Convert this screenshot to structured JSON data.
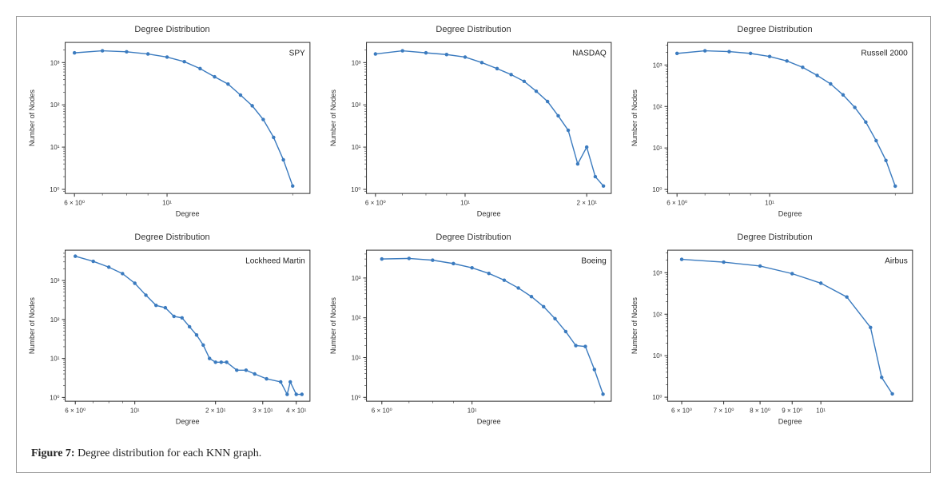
{
  "figure_caption_label": "Figure 7:",
  "figure_caption_text": " Degree distribution for each KNN graph.",
  "grid": {
    "rows": 2,
    "cols": 3
  },
  "chart_style": {
    "line_color": "#3b7bbf",
    "marker_color": "#3b7bbf",
    "marker_radius": 2.2,
    "line_width": 1.4,
    "border_color": "#333333",
    "tick_color": "#333333",
    "text_color": "#333333",
    "background": "#ffffff",
    "title_fontsize": 11,
    "label_fontsize": 9,
    "tick_fontsize": 8,
    "legend_fontsize": 10
  },
  "charts": [
    {
      "title": "Degree Distribution",
      "series_label": "SPY",
      "xlabel": "Degree",
      "ylabel": "Number of Nodes",
      "xscale": "log",
      "yscale": "log",
      "xlim": [
        5.7,
        22
      ],
      "ylim": [
        0.8,
        3000
      ],
      "xticks": [
        {
          "v": 6,
          "l": "6 × 10⁰"
        },
        {
          "v": 10,
          "l": "10¹"
        }
      ],
      "yticks": [
        {
          "v": 1,
          "l": "10⁰"
        },
        {
          "v": 10,
          "l": "10¹"
        },
        {
          "v": 100,
          "l": "10²"
        },
        {
          "v": 1000,
          "l": "10³"
        }
      ],
      "data": [
        {
          "x": 6,
          "y": 1700
        },
        {
          "x": 7,
          "y": 1900
        },
        {
          "x": 8,
          "y": 1800
        },
        {
          "x": 9,
          "y": 1600
        },
        {
          "x": 10,
          "y": 1350
        },
        {
          "x": 11,
          "y": 1050
        },
        {
          "x": 12,
          "y": 720
        },
        {
          "x": 13,
          "y": 460
        },
        {
          "x": 14,
          "y": 310
        },
        {
          "x": 15,
          "y": 170
        },
        {
          "x": 16,
          "y": 95
        },
        {
          "x": 17,
          "y": 45
        },
        {
          "x": 18,
          "y": 17
        },
        {
          "x": 19,
          "y": 5
        },
        {
          "x": 20,
          "y": 1.2
        }
      ]
    },
    {
      "title": "Degree Distribution",
      "series_label": "NASDAQ",
      "xlabel": "Degree",
      "ylabel": "Number of Nodes",
      "xscale": "log",
      "yscale": "log",
      "xlim": [
        5.7,
        23
      ],
      "ylim": [
        0.8,
        3000
      ],
      "xticks": [
        {
          "v": 6,
          "l": "6 × 10⁰"
        },
        {
          "v": 10,
          "l": "10¹"
        },
        {
          "v": 20,
          "l": "2 × 10¹"
        }
      ],
      "yticks": [
        {
          "v": 1,
          "l": "10⁰"
        },
        {
          "v": 10,
          "l": "10¹"
        },
        {
          "v": 100,
          "l": "10²"
        },
        {
          "v": 1000,
          "l": "10³"
        }
      ],
      "data": [
        {
          "x": 6,
          "y": 1600
        },
        {
          "x": 7,
          "y": 1900
        },
        {
          "x": 8,
          "y": 1700
        },
        {
          "x": 9,
          "y": 1550
        },
        {
          "x": 10,
          "y": 1350
        },
        {
          "x": 11,
          "y": 1000
        },
        {
          "x": 12,
          "y": 720
        },
        {
          "x": 13,
          "y": 520
        },
        {
          "x": 14,
          "y": 360
        },
        {
          "x": 15,
          "y": 210
        },
        {
          "x": 16,
          "y": 120
        },
        {
          "x": 17,
          "y": 55
        },
        {
          "x": 18,
          "y": 25
        },
        {
          "x": 19,
          "y": 4
        },
        {
          "x": 20,
          "y": 10
        },
        {
          "x": 21,
          "y": 2
        },
        {
          "x": 22,
          "y": 1.2
        }
      ]
    },
    {
      "title": "Degree Distribution",
      "series_label": "Russell 2000",
      "xlabel": "Degree",
      "ylabel": "Number of Nodes",
      "xscale": "log",
      "yscale": "log",
      "xlim": [
        5.7,
        22
      ],
      "ylim": [
        0.8,
        3500
      ],
      "xticks": [
        {
          "v": 6,
          "l": "6 × 10⁰"
        },
        {
          "v": 10,
          "l": "10¹"
        }
      ],
      "yticks": [
        {
          "v": 1,
          "l": "10⁰"
        },
        {
          "v": 10,
          "l": "10¹"
        },
        {
          "v": 100,
          "l": "10²"
        },
        {
          "v": 1000,
          "l": "10³"
        }
      ],
      "data": [
        {
          "x": 6,
          "y": 1900
        },
        {
          "x": 7,
          "y": 2200
        },
        {
          "x": 8,
          "y": 2100
        },
        {
          "x": 9,
          "y": 1900
        },
        {
          "x": 10,
          "y": 1600
        },
        {
          "x": 11,
          "y": 1250
        },
        {
          "x": 12,
          "y": 880
        },
        {
          "x": 13,
          "y": 560
        },
        {
          "x": 14,
          "y": 350
        },
        {
          "x": 15,
          "y": 190
        },
        {
          "x": 16,
          "y": 95
        },
        {
          "x": 17,
          "y": 42
        },
        {
          "x": 18,
          "y": 15
        },
        {
          "x": 19,
          "y": 5
        },
        {
          "x": 20,
          "y": 1.2
        }
      ]
    },
    {
      "title": "Degree Distribution",
      "series_label": "Lockheed Martin",
      "xlabel": "Degree",
      "ylabel": "Number of Nodes",
      "xscale": "log",
      "yscale": "log",
      "xlim": [
        5.5,
        45
      ],
      "ylim": [
        0.8,
        6000
      ],
      "xticks": [
        {
          "v": 6,
          "l": "6 × 10⁰"
        },
        {
          "v": 10,
          "l": "10¹"
        },
        {
          "v": 20,
          "l": "2 × 10¹"
        },
        {
          "v": 30,
          "l": "3 × 10¹"
        },
        {
          "v": 40,
          "l": "4 × 10¹"
        }
      ],
      "yticks": [
        {
          "v": 1,
          "l": "10⁰"
        },
        {
          "v": 10,
          "l": "10¹"
        },
        {
          "v": 100,
          "l": "10²"
        },
        {
          "v": 1000,
          "l": "10³"
        }
      ],
      "data": [
        {
          "x": 6,
          "y": 4200
        },
        {
          "x": 7,
          "y": 3100
        },
        {
          "x": 8,
          "y": 2200
        },
        {
          "x": 9,
          "y": 1500
        },
        {
          "x": 10,
          "y": 850
        },
        {
          "x": 11,
          "y": 420
        },
        {
          "x": 12,
          "y": 230
        },
        {
          "x": 13,
          "y": 200
        },
        {
          "x": 14,
          "y": 120
        },
        {
          "x": 15,
          "y": 110
        },
        {
          "x": 16,
          "y": 65
        },
        {
          "x": 17,
          "y": 40
        },
        {
          "x": 18,
          "y": 22
        },
        {
          "x": 19,
          "y": 10
        },
        {
          "x": 20,
          "y": 8
        },
        {
          "x": 21,
          "y": 8
        },
        {
          "x": 22,
          "y": 8
        },
        {
          "x": 24,
          "y": 5
        },
        {
          "x": 26,
          "y": 5
        },
        {
          "x": 28,
          "y": 4
        },
        {
          "x": 31,
          "y": 3
        },
        {
          "x": 35,
          "y": 2.5
        },
        {
          "x": 37,
          "y": 1.2
        },
        {
          "x": 38,
          "y": 2.5
        },
        {
          "x": 40,
          "y": 1.2
        },
        {
          "x": 42,
          "y": 1.2
        }
      ]
    },
    {
      "title": "Degree Distribution",
      "series_label": "Boeing",
      "xlabel": "Degree",
      "ylabel": "Number of Nodes",
      "xscale": "log",
      "yscale": "log",
      "xlim": [
        5.5,
        22
      ],
      "ylim": [
        0.8,
        5000
      ],
      "xticks": [
        {
          "v": 6,
          "l": "6 × 10⁰"
        },
        {
          "v": 10,
          "l": "10¹"
        }
      ],
      "yticks": [
        {
          "v": 1,
          "l": "10⁰"
        },
        {
          "v": 10,
          "l": "10¹"
        },
        {
          "v": 100,
          "l": "10²"
        },
        {
          "v": 1000,
          "l": "10³"
        }
      ],
      "data": [
        {
          "x": 6,
          "y": 3000
        },
        {
          "x": 7,
          "y": 3100
        },
        {
          "x": 8,
          "y": 2800
        },
        {
          "x": 9,
          "y": 2300
        },
        {
          "x": 10,
          "y": 1800
        },
        {
          "x": 11,
          "y": 1300
        },
        {
          "x": 12,
          "y": 880
        },
        {
          "x": 13,
          "y": 560
        },
        {
          "x": 14,
          "y": 340
        },
        {
          "x": 15,
          "y": 190
        },
        {
          "x": 16,
          "y": 95
        },
        {
          "x": 17,
          "y": 45
        },
        {
          "x": 18,
          "y": 20
        },
        {
          "x": 19,
          "y": 19
        },
        {
          "x": 20,
          "y": 5
        },
        {
          "x": 21,
          "y": 1.2
        }
      ]
    },
    {
      "title": "Degree Distribution",
      "series_label": "Airbus",
      "xlabel": "Degree",
      "ylabel": "Number of Nodes",
      "xscale": "log",
      "yscale": "log",
      "xlim": [
        5.7,
        14
      ],
      "ylim": [
        0.8,
        3500
      ],
      "xticks": [
        {
          "v": 6,
          "l": "6 × 10⁰"
        },
        {
          "v": 7,
          "l": "7 × 10⁰"
        },
        {
          "v": 8,
          "l": "8 × 10⁰"
        },
        {
          "v": 9,
          "l": "9 × 10⁰"
        },
        {
          "v": 10,
          "l": "10¹"
        }
      ],
      "yticks": [
        {
          "v": 1,
          "l": "10⁰"
        },
        {
          "v": 10,
          "l": "10¹"
        },
        {
          "v": 100,
          "l": "10²"
        },
        {
          "v": 1000,
          "l": "10³"
        }
      ],
      "data": [
        {
          "x": 6,
          "y": 2100
        },
        {
          "x": 7,
          "y": 1800
        },
        {
          "x": 8,
          "y": 1450
        },
        {
          "x": 9,
          "y": 950
        },
        {
          "x": 10,
          "y": 560
        },
        {
          "x": 11,
          "y": 260
        },
        {
          "x": 12,
          "y": 48
        },
        {
          "x": 12.5,
          "y": 3
        },
        {
          "x": 13,
          "y": 1.2
        }
      ]
    }
  ]
}
